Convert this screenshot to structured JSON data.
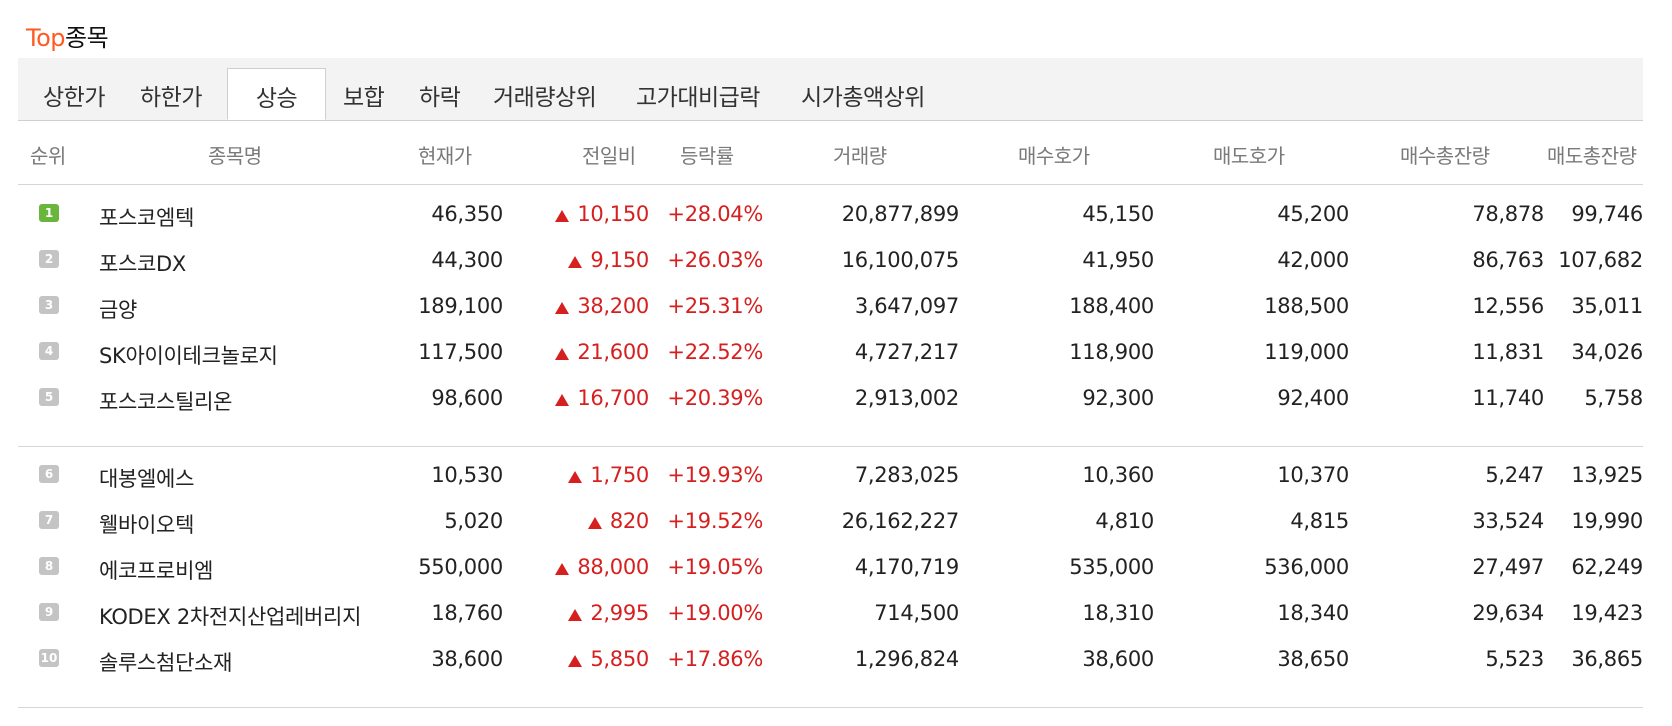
{
  "title": {
    "accent": "Top",
    "rest": "종목"
  },
  "tabs": [
    {
      "label": "상한가",
      "active": false
    },
    {
      "label": "하한가",
      "active": false
    },
    {
      "label": "상승",
      "active": true
    },
    {
      "label": "보합",
      "active": false
    },
    {
      "label": "하락",
      "active": false
    },
    {
      "label": "거래량상위",
      "active": false
    },
    {
      "label": "고가대비급락",
      "active": false
    },
    {
      "label": "시가총액상위",
      "active": false
    }
  ],
  "columns": [
    "순위",
    "종목명",
    "현재가",
    "전일비",
    "등락률",
    "거래량",
    "매수호가",
    "매도호가",
    "매수총잔량",
    "매도총잔량"
  ],
  "rows": [
    {
      "rank": "1",
      "name": "포스코엠텍",
      "price": "46,350",
      "change": "10,150",
      "rate": "+28.04%",
      "volume": "20,877,899",
      "bid": "45,150",
      "ask": "45,200",
      "bid_total": "78,878",
      "ask_total": "99,746"
    },
    {
      "rank": "2",
      "name": "포스코DX",
      "price": "44,300",
      "change": "9,150",
      "rate": "+26.03%",
      "volume": "16,100,075",
      "bid": "41,950",
      "ask": "42,000",
      "bid_total": "86,763",
      "ask_total": "107,682"
    },
    {
      "rank": "3",
      "name": "금양",
      "price": "189,100",
      "change": "38,200",
      "rate": "+25.31%",
      "volume": "3,647,097",
      "bid": "188,400",
      "ask": "188,500",
      "bid_total": "12,556",
      "ask_total": "35,011"
    },
    {
      "rank": "4",
      "name": "SK아이이테크놀로지",
      "price": "117,500",
      "change": "21,600",
      "rate": "+22.52%",
      "volume": "4,727,217",
      "bid": "118,900",
      "ask": "119,000",
      "bid_total": "11,831",
      "ask_total": "34,026"
    },
    {
      "rank": "5",
      "name": "포스코스틸리온",
      "price": "98,600",
      "change": "16,700",
      "rate": "+20.39%",
      "volume": "2,913,002",
      "bid": "92,300",
      "ask": "92,400",
      "bid_total": "11,740",
      "ask_total": "5,758"
    },
    {
      "rank": "6",
      "name": "대봉엘에스",
      "price": "10,530",
      "change": "1,750",
      "rate": "+19.93%",
      "volume": "7,283,025",
      "bid": "10,360",
      "ask": "10,370",
      "bid_total": "5,247",
      "ask_total": "13,925"
    },
    {
      "rank": "7",
      "name": "웰바이오텍",
      "price": "5,020",
      "change": "820",
      "rate": "+19.52%",
      "volume": "26,162,227",
      "bid": "4,810",
      "ask": "4,815",
      "bid_total": "33,524",
      "ask_total": "19,990"
    },
    {
      "rank": "8",
      "name": "에코프로비엠",
      "price": "550,000",
      "change": "88,000",
      "rate": "+19.05%",
      "volume": "4,170,719",
      "bid": "535,000",
      "ask": "536,000",
      "bid_total": "27,497",
      "ask_total": "62,249"
    },
    {
      "rank": "9",
      "name": "KODEX 2차전지산업레버리지",
      "price": "18,760",
      "change": "2,995",
      "rate": "+19.00%",
      "volume": "714,500",
      "bid": "18,310",
      "ask": "18,340",
      "bid_total": "29,634",
      "ask_total": "19,423"
    },
    {
      "rank": "10",
      "name": "솔루스첨단소재",
      "price": "38,600",
      "change": "5,850",
      "rate": "+17.86%",
      "volume": "1,296,824",
      "bid": "38,600",
      "ask": "38,650",
      "bid_total": "5,523",
      "ask_total": "36,865"
    }
  ],
  "icons": {
    "rank": "rank-badge-icon",
    "change": "up-triangle-icon"
  },
  "colors": {
    "accent": "#ff5a1f",
    "up": "#d61f1f",
    "rank_first": "#6ab53b",
    "rank_other": "#c4c4c4"
  }
}
